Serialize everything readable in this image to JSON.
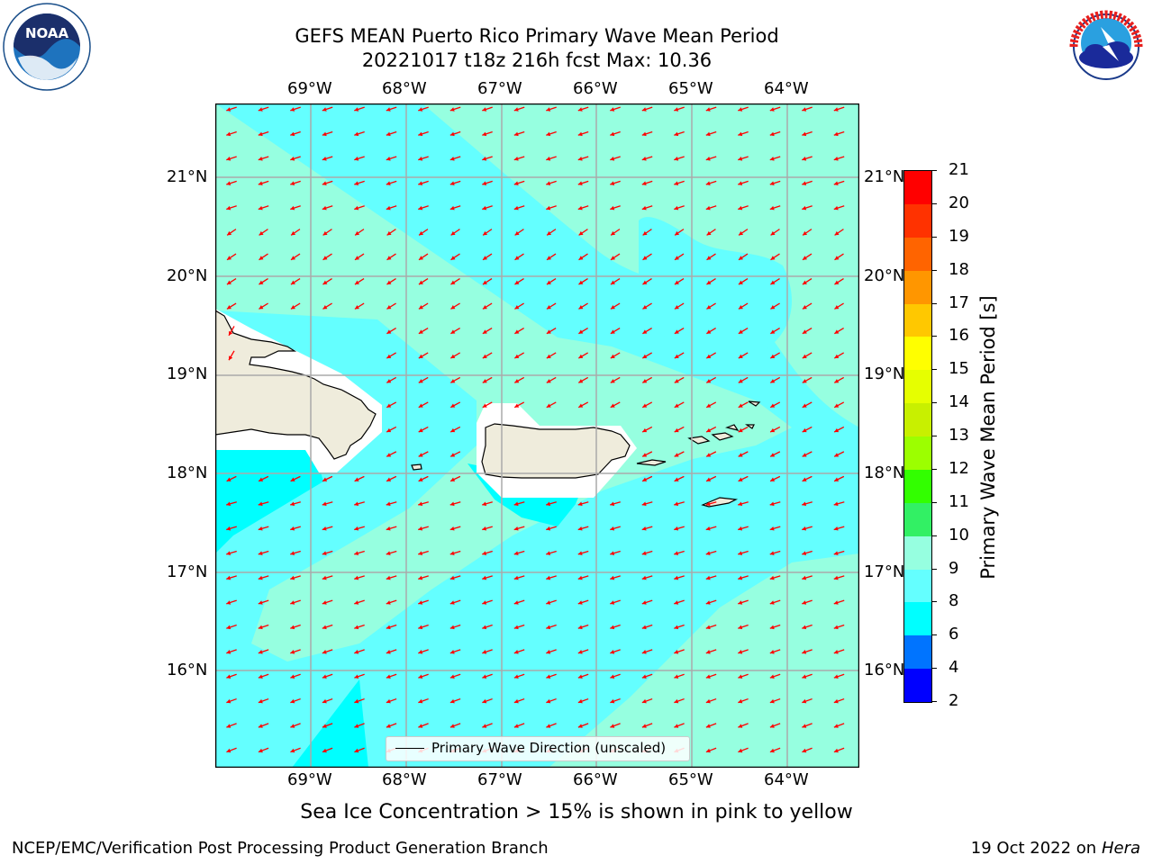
{
  "title": {
    "line1": "GEFS MEAN Puerto Rico Primary Wave Mean Period",
    "line2": "20221017 t18z 216h fcst   Max: 10.36"
  },
  "map": {
    "lon_labels": [
      "69°W",
      "68°W",
      "67°W",
      "66°W",
      "65°W",
      "64°W"
    ],
    "lat_labels": [
      "21°N",
      "20°N",
      "19°N",
      "18°N",
      "17°N",
      "16°N"
    ],
    "land_color": "#efecdc",
    "arrow_color": "#ff0000",
    "grid": true
  },
  "colorbar": {
    "label": "Primary Wave Mean Period [s]",
    "ticks": [
      "21",
      "20",
      "19",
      "18",
      "17",
      "16",
      "15",
      "14",
      "13",
      "12",
      "11",
      "10",
      "9",
      "8",
      "6",
      "4",
      "2"
    ],
    "colors": [
      "#0000ff",
      "#0074ff",
      "#00ffff",
      "#64ffff",
      "#96ffe0",
      "#32f064",
      "#32ff00",
      "#9cff00",
      "#c8f000",
      "#e6ff00",
      "#ffff00",
      "#ffc800",
      "#ff9600",
      "#ff6400",
      "#ff3200",
      "#ff0000"
    ]
  },
  "legend": {
    "label": "Primary Wave Direction (unscaled)"
  },
  "note": "Sea Ice Concentration > 15% is shown in pink to yellow",
  "footer": {
    "left": "NCEP/EMC/Verification Post Processing Product Generation Branch",
    "right_prefix": "19 Oct 2022 on ",
    "right_host": "Hera"
  },
  "logos": {
    "noaa": "NOAA",
    "nws_ring": "NATIONAL WEATHER SERVICE",
    "noaa_ring": "NATIONAL OCEANIC AND ATMOSPHERIC ADMINISTRATION"
  }
}
